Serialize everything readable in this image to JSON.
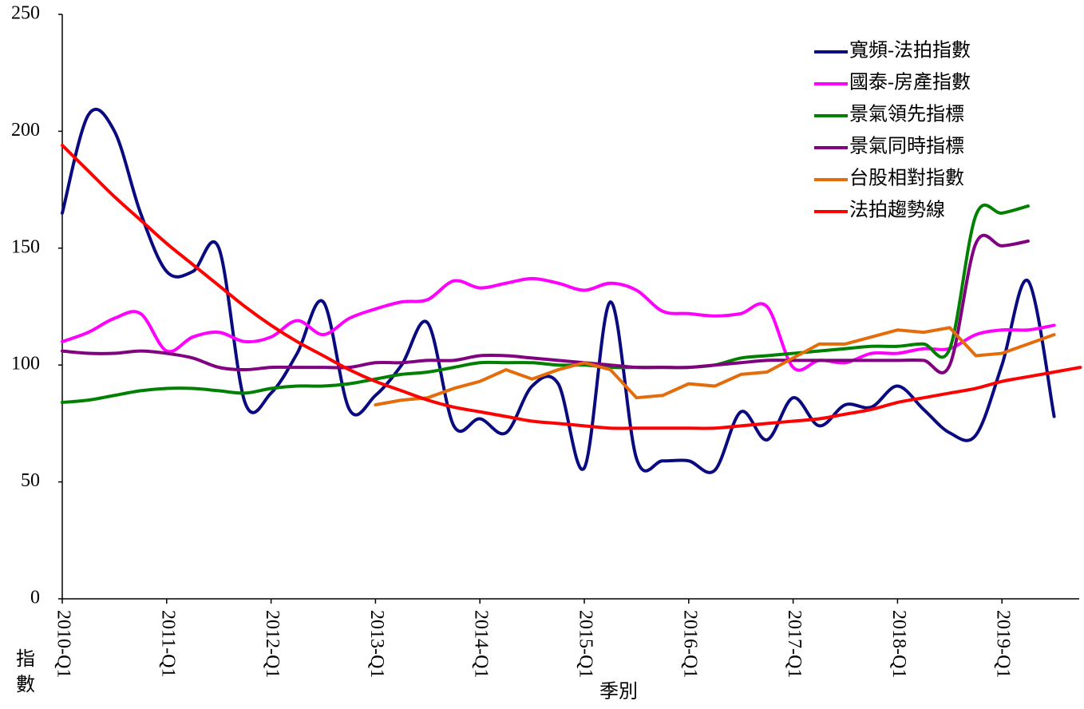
{
  "chart_data": {
    "type": "line",
    "x_label": "季別",
    "y_label": "指數",
    "categories": [
      "2010-Q1",
      null,
      null,
      null,
      "2011-Q1",
      null,
      null,
      null,
      "2012-Q1",
      null,
      null,
      null,
      "2013-Q1",
      null,
      null,
      null,
      "2014-Q1",
      null,
      null,
      null,
      "2015-Q1",
      null,
      null,
      null,
      "2016-Q1",
      null,
      null,
      null,
      "2017-Q1",
      null,
      null,
      null,
      "2018-Q1",
      null,
      null,
      null,
      "2019-Q1",
      null,
      null,
      null
    ],
    "series": [
      {
        "name": "寬頻-法拍指數",
        "color": "#0a0a80",
        "smooth": true,
        "values": [
          165,
          207,
          200,
          165,
          140,
          140,
          150,
          84,
          88,
          105,
          127,
          81,
          87,
          100,
          118,
          74,
          77,
          71,
          91,
          92,
          56,
          127,
          60,
          59,
          59,
          55,
          80,
          68,
          86,
          74,
          83,
          82,
          91,
          81,
          71,
          70,
          100,
          136,
          78,
          null
        ]
      },
      {
        "name": "國泰-房產指數",
        "color": "#ff00ff",
        "smooth": true,
        "values": [
          110,
          114,
          120,
          122,
          106,
          112,
          114,
          110,
          112,
          119,
          113,
          120,
          124,
          127,
          128,
          136,
          133,
          135,
          137,
          135,
          132,
          135,
          132,
          123,
          122,
          121,
          122,
          125,
          99,
          102,
          101,
          105,
          105,
          107,
          107,
          113,
          115,
          115,
          117,
          null
        ]
      },
      {
        "name": "景氣領先指標",
        "color": "#008000",
        "smooth": true,
        "values": [
          84,
          85,
          87,
          89,
          90,
          90,
          89,
          88,
          90,
          91,
          91,
          92,
          94,
          96,
          97,
          99,
          101,
          101,
          101,
          100,
          100,
          99,
          99,
          99,
          99,
          100,
          103,
          104,
          105,
          106,
          107,
          108,
          108,
          109,
          107,
          164,
          165,
          168,
          null,
          null
        ]
      },
      {
        "name": "景氣同時指標",
        "color": "#800080",
        "smooth": true,
        "values": [
          106,
          105,
          105,
          106,
          105,
          103,
          99,
          98,
          99,
          99,
          99,
          99,
          101,
          101,
          102,
          102,
          104,
          104,
          103,
          102,
          101,
          100,
          99,
          99,
          99,
          100,
          101,
          102,
          102,
          102,
          102,
          102,
          102,
          102,
          100,
          152,
          151,
          153,
          null,
          null
        ]
      },
      {
        "name": "台股相對指數",
        "color": "#e46c0a",
        "smooth": false,
        "values": [
          null,
          null,
          null,
          null,
          null,
          null,
          null,
          null,
          null,
          null,
          null,
          null,
          83,
          85,
          86,
          90,
          93,
          98,
          94,
          98,
          101,
          98,
          86,
          87,
          92,
          91,
          96,
          97,
          103,
          109,
          109,
          112,
          115,
          114,
          116,
          104,
          105,
          109,
          113,
          null
        ]
      },
      {
        "name": "法拍趨勢線",
        "color": "#ff0000",
        "smooth": true,
        "values": [
          194,
          183,
          172,
          162,
          152,
          143,
          134,
          125,
          117,
          110,
          104,
          98,
          93,
          89,
          85,
          82,
          80,
          78,
          76,
          75,
          74,
          73,
          73,
          73,
          73,
          73,
          74,
          75,
          76,
          77,
          79,
          81,
          84,
          86,
          88,
          90,
          93,
          95,
          97,
          99
        ]
      }
    ],
    "ylim": [
      0,
      250
    ],
    "yticks": [
      0,
      50,
      100,
      150,
      200,
      250
    ],
    "grid": false,
    "legend": "top-right"
  }
}
